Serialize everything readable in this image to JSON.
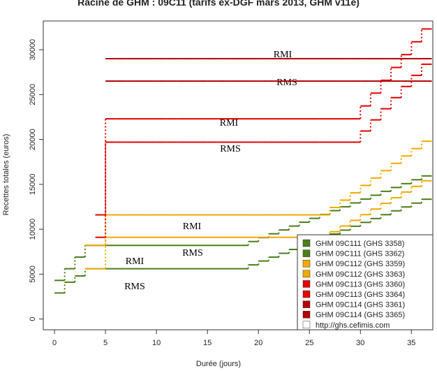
{
  "chart_data": {
    "type": "step",
    "title": "Racine de GHM : 09C11 (tarifs ex-DGF mars 2013, GHM v11e)",
    "x_label": "Durée (jours)",
    "y_label": "Recettes totales (euros)",
    "x": [
      0,
      1,
      2,
      3,
      4,
      5,
      6,
      7,
      8,
      9,
      10,
      11,
      12,
      13,
      14,
      15,
      16,
      17,
      18,
      19,
      20,
      21,
      22,
      23,
      24,
      25,
      26,
      27,
      28,
      29,
      30,
      31,
      32,
      33,
      34,
      35,
      36
    ],
    "series": [
      {
        "name": "GHM 09C111 (GHS 3358)",
        "color": "#4b7d1a",
        "values": [
          4300,
          5600,
          6900,
          8200,
          8200,
          8200,
          8200,
          8200,
          8200,
          8200,
          8200,
          8200,
          8200,
          8200,
          8200,
          8200,
          8200,
          8200,
          8200,
          8630,
          9060,
          9490,
          9920,
          10350,
          10780,
          11210,
          11640,
          12070,
          12500,
          12930,
          13360,
          13790,
          14220,
          14650,
          15080,
          15510,
          15940
        ]
      },
      {
        "name": "GHM 09C111 (GHS 3362)",
        "color": "#4b7d1a",
        "values": [
          2900,
          4100,
          4800,
          5600,
          5600,
          5600,
          5600,
          5600,
          5600,
          5600,
          5600,
          5600,
          5600,
          5600,
          5600,
          5600,
          5600,
          5600,
          5600,
          6030,
          6460,
          6890,
          7320,
          7750,
          8180,
          8610,
          9040,
          9470,
          9900,
          10330,
          10760,
          11190,
          11620,
          12050,
          12480,
          12910,
          13340
        ]
      },
      {
        "name": "GHM 09C112 (GHS 3359)",
        "color": "#f2a900",
        "values": [
          null,
          null,
          null,
          8200,
          8200,
          11600,
          11600,
          11600,
          11600,
          11600,
          11600,
          11600,
          11600,
          11600,
          11600,
          11600,
          11600,
          11600,
          11600,
          11600,
          11600,
          11600,
          11600,
          11600,
          11600,
          11600,
          11600,
          12420,
          13240,
          14060,
          14880,
          15700,
          16520,
          17340,
          18160,
          18980,
          19800
        ]
      },
      {
        "name": "GHM 09C112 (GHS 3363)",
        "color": "#f2a900",
        "values": [
          null,
          null,
          null,
          5600,
          5600,
          9100,
          9100,
          9100,
          9100,
          9100,
          9100,
          9100,
          9100,
          9100,
          9100,
          9100,
          9100,
          9100,
          9100,
          9100,
          9100,
          9100,
          9100,
          9100,
          9100,
          9100,
          9100,
          9730,
          10360,
          10990,
          11620,
          12250,
          12880,
          13510,
          14140,
          14770,
          15400
        ]
      },
      {
        "name": "GHM 09C113 (GHS 3360)",
        "color": "#e60000",
        "values": [
          null,
          null,
          null,
          null,
          11600,
          22300,
          22300,
          22300,
          22300,
          22300,
          22300,
          22300,
          22300,
          22300,
          22300,
          22300,
          22300,
          22300,
          22300,
          22300,
          22300,
          22300,
          22300,
          22300,
          22300,
          22300,
          22300,
          22300,
          22300,
          22300,
          23730,
          25160,
          26590,
          28020,
          29450,
          30880,
          32310
        ]
      },
      {
        "name": "GHM 09C113 (GHS 3364)",
        "color": "#e60000",
        "values": [
          null,
          null,
          null,
          null,
          9100,
          19700,
          19700,
          19700,
          19700,
          19700,
          19700,
          19700,
          19700,
          19700,
          19700,
          19700,
          19700,
          19700,
          19700,
          19700,
          19700,
          19700,
          19700,
          19700,
          19700,
          19700,
          19700,
          19700,
          19700,
          19700,
          20940,
          22180,
          23420,
          24660,
          25900,
          27140,
          28380
        ]
      },
      {
        "name": "GHM 09C114 (GHS 3361)",
        "color": "#b30000",
        "values": [
          null,
          null,
          null,
          null,
          null,
          29000,
          29000,
          29000,
          29000,
          29000,
          29000,
          29000,
          29000,
          29000,
          29000,
          29000,
          29000,
          29000,
          29000,
          29000,
          29000,
          29000,
          29000,
          29000,
          29000,
          29000,
          29000,
          29000,
          29000,
          29000,
          29000,
          29000,
          29000,
          29000,
          29000,
          29000,
          29000
        ]
      },
      {
        "name": "GHM 09C114 (GHS 3365)",
        "color": "#b30000",
        "values": [
          null,
          null,
          null,
          null,
          null,
          26500,
          26500,
          26500,
          26500,
          26500,
          26500,
          26500,
          26500,
          26500,
          26500,
          26500,
          26500,
          26500,
          26500,
          26500,
          26500,
          26500,
          26500,
          26500,
          26500,
          26500,
          26500,
          26500,
          26500,
          26500,
          26500,
          26500,
          26500,
          26500,
          26500,
          26500,
          26500
        ]
      }
    ],
    "legend_note": "http://ghs.cefimis.com",
    "annotations": [
      "RMI",
      "RMS",
      "RMI",
      "RMS",
      "RMI",
      "RMS",
      "RMI",
      "RMS"
    ],
    "xlim": [
      -1.1,
      37.1
    ],
    "xticks": [
      0,
      5,
      10,
      15,
      20,
      25,
      30,
      35
    ],
    "ylim": [
      -1200,
      33200
    ],
    "yticks": [
      0,
      5000,
      10000,
      15000,
      20000,
      25000,
      30000
    ],
    "legend_position": "lower right"
  }
}
